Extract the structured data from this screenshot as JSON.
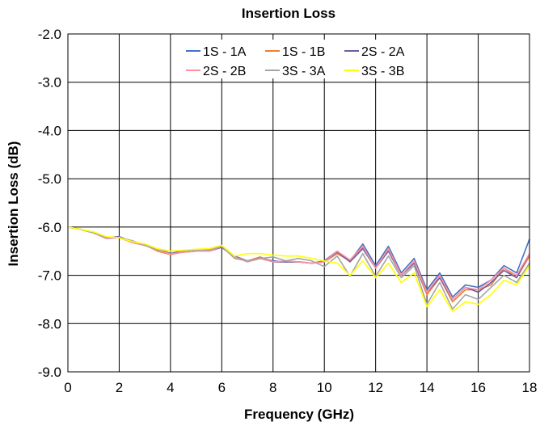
{
  "chart_data": {
    "type": "line",
    "title": "Insertion Loss",
    "xlabel": "Frequency (GHz)",
    "ylabel": "Insertion Loss (dB)",
    "xlim": [
      0,
      18
    ],
    "ylim": [
      -9.0,
      -2.0
    ],
    "xticks": [
      0,
      2,
      4,
      6,
      8,
      10,
      12,
      14,
      16,
      18
    ],
    "xtick_labels": [
      "0",
      "2",
      "4",
      "6",
      "8",
      "10",
      "12",
      "14",
      "16",
      "18"
    ],
    "yticks": [
      -2.0,
      -3.0,
      -4.0,
      -5.0,
      -6.0,
      -7.0,
      -8.0,
      -9.0
    ],
    "ytick_labels": [
      "-2.0",
      "-3.0",
      "-4.0",
      "-5.0",
      "-6.0",
      "-7.0",
      "-8.0",
      "-9.0"
    ],
    "grid": true,
    "legend_position": "top-center",
    "x": [
      0,
      0.5,
      1,
      1.5,
      2,
      2.5,
      3,
      3.5,
      4,
      4.5,
      5,
      5.5,
      6,
      6.5,
      7,
      7.5,
      8,
      8.5,
      9,
      9.5,
      10,
      10.5,
      11,
      11.5,
      12,
      12.5,
      13,
      13.5,
      14,
      14.5,
      15,
      15.5,
      16,
      16.5,
      17,
      17.5,
      18
    ],
    "series": [
      {
        "name": "1S - 1A",
        "color": "#4472C4",
        "values": [
          -6.0,
          -6.05,
          -6.12,
          -6.22,
          -6.2,
          -6.32,
          -6.38,
          -6.47,
          -6.55,
          -6.52,
          -6.5,
          -6.48,
          -6.42,
          -6.6,
          -6.7,
          -6.65,
          -6.7,
          -6.72,
          -6.72,
          -6.75,
          -6.7,
          -6.5,
          -6.7,
          -6.35,
          -6.8,
          -6.4,
          -6.95,
          -6.65,
          -7.3,
          -6.95,
          -7.45,
          -7.2,
          -7.25,
          -7.1,
          -6.8,
          -6.95,
          -6.25
        ]
      },
      {
        "name": "1S - 1B",
        "color": "#ED7D31",
        "values": [
          -6.0,
          -6.05,
          -6.12,
          -6.22,
          -6.22,
          -6.3,
          -6.37,
          -6.5,
          -6.57,
          -6.52,
          -6.5,
          -6.5,
          -6.42,
          -6.62,
          -6.7,
          -6.62,
          -6.72,
          -6.72,
          -6.72,
          -6.75,
          -6.72,
          -6.55,
          -6.7,
          -6.42,
          -6.85,
          -6.45,
          -7.0,
          -6.75,
          -7.4,
          -7.05,
          -7.55,
          -7.3,
          -7.3,
          -7.2,
          -6.85,
          -7.05,
          -6.6
        ]
      },
      {
        "name": "2S - 2A",
        "color": "#6B5FA6",
        "values": [
          -6.0,
          -6.05,
          -6.12,
          -6.22,
          -6.2,
          -6.3,
          -6.36,
          -6.47,
          -6.55,
          -6.5,
          -6.5,
          -6.5,
          -6.42,
          -6.62,
          -6.72,
          -6.65,
          -6.72,
          -6.72,
          -6.72,
          -6.75,
          -6.72,
          -6.52,
          -6.72,
          -6.45,
          -6.85,
          -6.5,
          -7.0,
          -6.75,
          -7.35,
          -7.05,
          -7.5,
          -7.25,
          -7.35,
          -7.15,
          -6.9,
          -7.05,
          -6.55
        ]
      },
      {
        "name": "2S - 2B",
        "color": "#FF8FA3",
        "values": [
          -6.0,
          -6.05,
          -6.12,
          -6.24,
          -6.22,
          -6.32,
          -6.38,
          -6.48,
          -6.56,
          -6.52,
          -6.5,
          -6.5,
          -6.4,
          -6.62,
          -6.72,
          -6.65,
          -6.72,
          -6.7,
          -6.72,
          -6.75,
          -6.72,
          -6.5,
          -6.68,
          -6.4,
          -6.85,
          -6.45,
          -7.0,
          -6.7,
          -7.35,
          -7.0,
          -7.5,
          -7.25,
          -7.3,
          -7.1,
          -6.85,
          -7.0,
          -6.55
        ]
      },
      {
        "name": "3S - 3A",
        "color": "#A5A5A5",
        "values": [
          -6.0,
          -6.05,
          -6.12,
          -6.22,
          -6.22,
          -6.28,
          -6.38,
          -6.47,
          -6.5,
          -6.5,
          -6.48,
          -6.47,
          -6.4,
          -6.65,
          -6.7,
          -6.65,
          -6.62,
          -6.7,
          -6.65,
          -6.7,
          -6.82,
          -6.6,
          -7.02,
          -6.55,
          -7.02,
          -6.6,
          -7.05,
          -6.8,
          -7.6,
          -7.15,
          -7.7,
          -7.4,
          -7.5,
          -7.25,
          -7.0,
          -7.15,
          -6.75
        ]
      },
      {
        "name": "3S - 3B",
        "color": "#FFFF00",
        "values": [
          -6.0,
          -6.05,
          -6.1,
          -6.2,
          -6.22,
          -6.3,
          -6.35,
          -6.45,
          -6.5,
          -6.48,
          -6.46,
          -6.45,
          -6.38,
          -6.6,
          -6.55,
          -6.55,
          -6.58,
          -6.6,
          -6.6,
          -6.65,
          -6.7,
          -6.75,
          -7.0,
          -6.7,
          -7.05,
          -6.75,
          -7.15,
          -6.95,
          -7.65,
          -7.3,
          -7.75,
          -7.55,
          -7.6,
          -7.4,
          -7.1,
          -7.2,
          -6.8
        ]
      }
    ]
  }
}
